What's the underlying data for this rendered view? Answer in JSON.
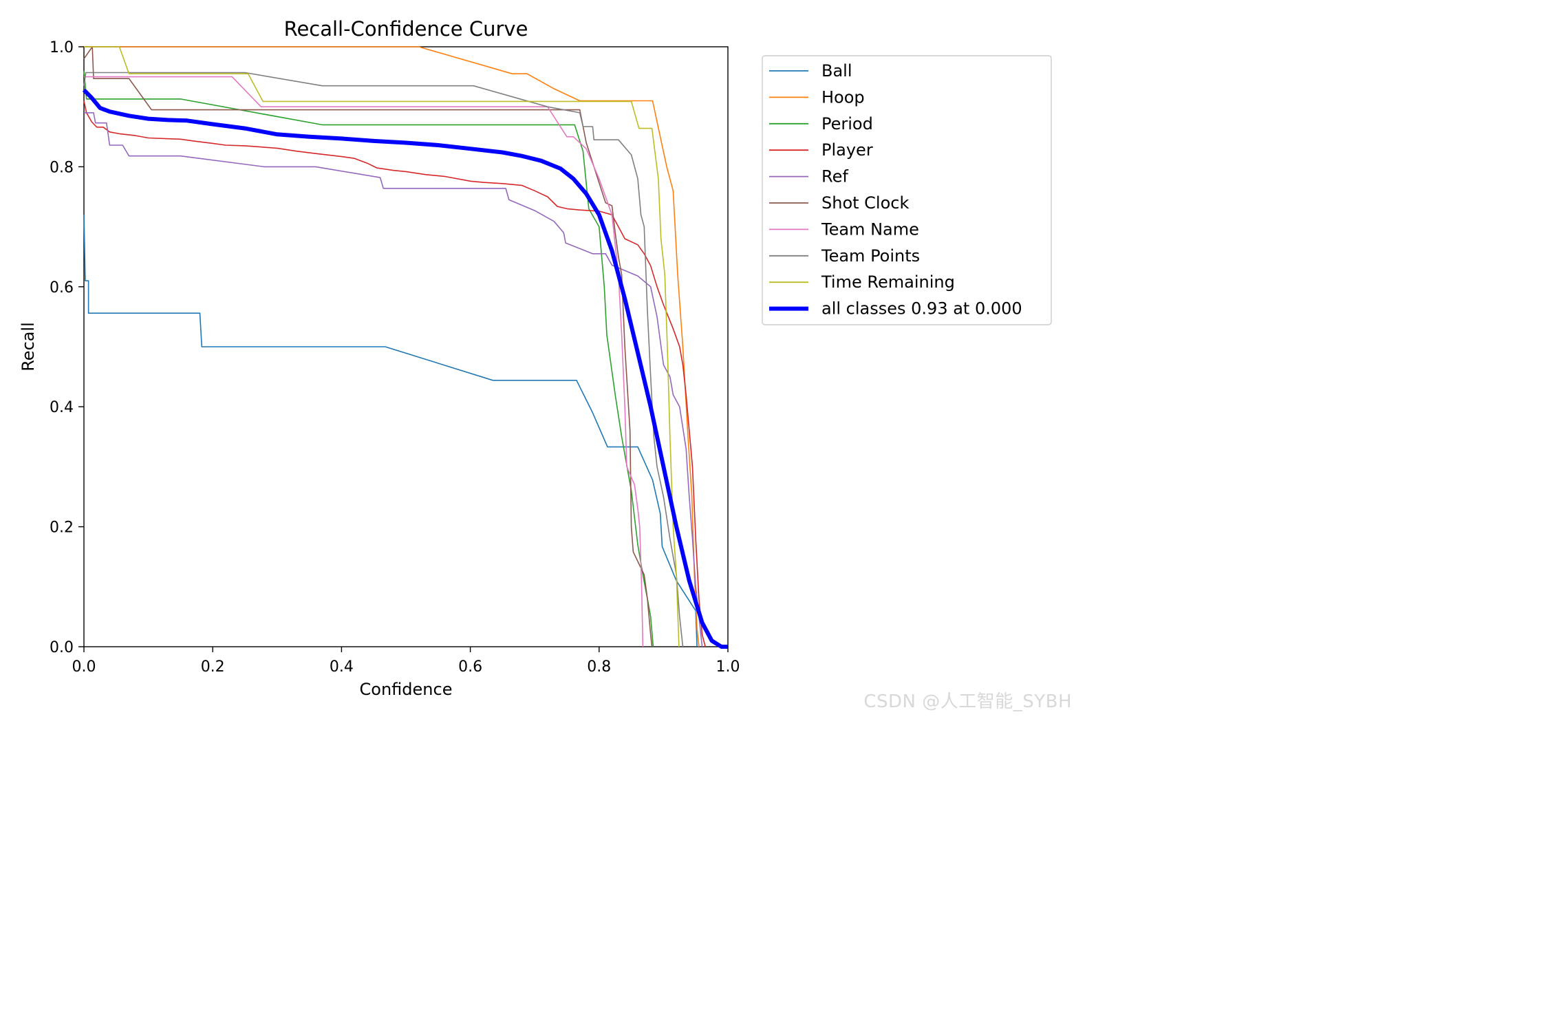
{
  "watermark": "CSDN @人工智能_SYBH",
  "chart_data": {
    "type": "line",
    "title": "Recall-Confidence Curve",
    "xlabel": "Confidence",
    "ylabel": "Recall",
    "xlim": [
      0,
      1
    ],
    "ylim": [
      0,
      1
    ],
    "xticks": [
      "0.0",
      "0.2",
      "0.4",
      "0.6",
      "0.8",
      "1.0"
    ],
    "yticks": [
      "0.0",
      "0.2",
      "0.4",
      "0.6",
      "0.8",
      "1.0"
    ],
    "grid": false,
    "legend_position": "outside-upper-right",
    "series": [
      {
        "name": "Ball",
        "color": "#1f77b4",
        "width": 1.6,
        "points": [
          [
            0,
            0.72
          ],
          [
            0.002,
            0.61
          ],
          [
            0.007,
            0.61
          ],
          [
            0.007,
            0.556
          ],
          [
            0.18,
            0.556
          ],
          [
            0.183,
            0.5
          ],
          [
            0.468,
            0.5
          ],
          [
            0.635,
            0.444
          ],
          [
            0.765,
            0.444
          ],
          [
            0.79,
            0.39
          ],
          [
            0.813,
            0.333
          ],
          [
            0.86,
            0.333
          ],
          [
            0.883,
            0.278
          ],
          [
            0.895,
            0.222
          ],
          [
            0.898,
            0.167
          ],
          [
            0.92,
            0.11
          ],
          [
            0.95,
            0.06
          ],
          [
            0.952,
            0
          ]
        ]
      },
      {
        "name": "Hoop",
        "color": "#ff7f0e",
        "width": 1.6,
        "points": [
          [
            0,
            1
          ],
          [
            0.52,
            1
          ],
          [
            0.665,
            0.955
          ],
          [
            0.688,
            0.955
          ],
          [
            0.73,
            0.93
          ],
          [
            0.77,
            0.91
          ],
          [
            0.883,
            0.91
          ],
          [
            0.893,
            0.86
          ],
          [
            0.905,
            0.8
          ],
          [
            0.915,
            0.76
          ],
          [
            0.922,
            0.62
          ],
          [
            0.93,
            0.5
          ],
          [
            0.938,
            0.35
          ],
          [
            0.944,
            0.25
          ],
          [
            0.948,
            0.12
          ],
          [
            0.952,
            0.03
          ],
          [
            0.955,
            0
          ]
        ]
      },
      {
        "name": "Period",
        "color": "#2ca02c",
        "width": 1.6,
        "points": [
          [
            0,
            0.96
          ],
          [
            0.004,
            0.913
          ],
          [
            0.15,
            0.913
          ],
          [
            0.37,
            0.87
          ],
          [
            0.762,
            0.87
          ],
          [
            0.775,
            0.826
          ],
          [
            0.784,
            0.73
          ],
          [
            0.8,
            0.7
          ],
          [
            0.808,
            0.6
          ],
          [
            0.812,
            0.52
          ],
          [
            0.825,
            0.42
          ],
          [
            0.835,
            0.35
          ],
          [
            0.85,
            0.26
          ],
          [
            0.86,
            0.17
          ],
          [
            0.868,
            0.12
          ],
          [
            0.875,
            0.08
          ],
          [
            0.88,
            0.05
          ],
          [
            0.884,
            0
          ]
        ]
      },
      {
        "name": "Player",
        "color": "#d62728",
        "width": 1.6,
        "points": [
          [
            0,
            0.91
          ],
          [
            0.004,
            0.89
          ],
          [
            0.012,
            0.875
          ],
          [
            0.02,
            0.866
          ],
          [
            0.03,
            0.866
          ],
          [
            0.04,
            0.858
          ],
          [
            0.055,
            0.855
          ],
          [
            0.08,
            0.852
          ],
          [
            0.1,
            0.848
          ],
          [
            0.15,
            0.846
          ],
          [
            0.17,
            0.843
          ],
          [
            0.2,
            0.839
          ],
          [
            0.22,
            0.836
          ],
          [
            0.25,
            0.835
          ],
          [
            0.3,
            0.831
          ],
          [
            0.33,
            0.826
          ],
          [
            0.36,
            0.822
          ],
          [
            0.4,
            0.817
          ],
          [
            0.42,
            0.814
          ],
          [
            0.44,
            0.806
          ],
          [
            0.455,
            0.798
          ],
          [
            0.48,
            0.794
          ],
          [
            0.5,
            0.792
          ],
          [
            0.53,
            0.787
          ],
          [
            0.56,
            0.784
          ],
          [
            0.6,
            0.776
          ],
          [
            0.62,
            0.774
          ],
          [
            0.65,
            0.772
          ],
          [
            0.68,
            0.769
          ],
          [
            0.7,
            0.76
          ],
          [
            0.72,
            0.75
          ],
          [
            0.735,
            0.734
          ],
          [
            0.75,
            0.73
          ],
          [
            0.77,
            0.728
          ],
          [
            0.8,
            0.726
          ],
          [
            0.82,
            0.72
          ],
          [
            0.83,
            0.7
          ],
          [
            0.84,
            0.68
          ],
          [
            0.86,
            0.67
          ],
          [
            0.87,
            0.655
          ],
          [
            0.88,
            0.635
          ],
          [
            0.89,
            0.6
          ],
          [
            0.9,
            0.57
          ],
          [
            0.915,
            0.53
          ],
          [
            0.925,
            0.5
          ],
          [
            0.93,
            0.47
          ],
          [
            0.935,
            0.42
          ],
          [
            0.945,
            0.3
          ],
          [
            0.95,
            0.18
          ],
          [
            0.955,
            0.08
          ],
          [
            0.96,
            0.02
          ],
          [
            0.965,
            0
          ]
        ]
      },
      {
        "name": "Ref",
        "color": "#9467bd",
        "width": 1.6,
        "points": [
          [
            0,
            0.89
          ],
          [
            0.015,
            0.89
          ],
          [
            0.018,
            0.873
          ],
          [
            0.035,
            0.873
          ],
          [
            0.04,
            0.836
          ],
          [
            0.06,
            0.836
          ],
          [
            0.07,
            0.818
          ],
          [
            0.15,
            0.818
          ],
          [
            0.28,
            0.8
          ],
          [
            0.36,
            0.8
          ],
          [
            0.46,
            0.782
          ],
          [
            0.465,
            0.764
          ],
          [
            0.655,
            0.764
          ],
          [
            0.66,
            0.745
          ],
          [
            0.7,
            0.727
          ],
          [
            0.73,
            0.709
          ],
          [
            0.745,
            0.69
          ],
          [
            0.748,
            0.673
          ],
          [
            0.79,
            0.655
          ],
          [
            0.81,
            0.655
          ],
          [
            0.82,
            0.636
          ],
          [
            0.86,
            0.618
          ],
          [
            0.88,
            0.6
          ],
          [
            0.89,
            0.55
          ],
          [
            0.9,
            0.47
          ],
          [
            0.91,
            0.45
          ],
          [
            0.915,
            0.42
          ],
          [
            0.925,
            0.4
          ],
          [
            0.935,
            0.33
          ],
          [
            0.94,
            0.25
          ],
          [
            0.945,
            0.18
          ],
          [
            0.95,
            0.1
          ],
          [
            0.955,
            0.05
          ],
          [
            0.96,
            0
          ]
        ]
      },
      {
        "name": "Shot Clock",
        "color": "#8c564b",
        "width": 1.6,
        "points": [
          [
            0,
            0.98
          ],
          [
            0.013,
            1
          ],
          [
            0.015,
            0.947
          ],
          [
            0.07,
            0.947
          ],
          [
            0.105,
            0.895
          ],
          [
            0.73,
            0.895
          ],
          [
            0.77,
            0.895
          ],
          [
            0.78,
            0.84
          ],
          [
            0.795,
            0.79
          ],
          [
            0.81,
            0.74
          ],
          [
            0.82,
            0.735
          ],
          [
            0.825,
            0.69
          ],
          [
            0.83,
            0.65
          ],
          [
            0.835,
            0.62
          ],
          [
            0.84,
            0.5
          ],
          [
            0.848,
            0.36
          ],
          [
            0.85,
            0.2
          ],
          [
            0.853,
            0.158
          ],
          [
            0.87,
            0.12
          ],
          [
            0.875,
            0.08
          ],
          [
            0.88,
            0.02
          ],
          [
            0.882,
            0
          ]
        ]
      },
      {
        "name": "Team Name",
        "color": "#e377c2",
        "width": 1.6,
        "points": [
          [
            0,
            0.95
          ],
          [
            0.23,
            0.95
          ],
          [
            0.275,
            0.9
          ],
          [
            0.72,
            0.9
          ],
          [
            0.75,
            0.85
          ],
          [
            0.76,
            0.85
          ],
          [
            0.78,
            0.83
          ],
          [
            0.8,
            0.78
          ],
          [
            0.82,
            0.72
          ],
          [
            0.83,
            0.62
          ],
          [
            0.835,
            0.52
          ],
          [
            0.84,
            0.4
          ],
          [
            0.843,
            0.3
          ],
          [
            0.855,
            0.27
          ],
          [
            0.86,
            0.23
          ],
          [
            0.863,
            0.2
          ],
          [
            0.866,
            0.1
          ],
          [
            0.868,
            0
          ]
        ]
      },
      {
        "name": "Team Points",
        "color": "#7f7f7f",
        "width": 1.6,
        "points": [
          [
            0,
            0.935
          ],
          [
            0.003,
            0.957
          ],
          [
            0.25,
            0.957
          ],
          [
            0.37,
            0.935
          ],
          [
            0.605,
            0.935
          ],
          [
            0.72,
            0.9
          ],
          [
            0.77,
            0.89
          ],
          [
            0.775,
            0.867
          ],
          [
            0.79,
            0.867
          ],
          [
            0.792,
            0.845
          ],
          [
            0.83,
            0.845
          ],
          [
            0.85,
            0.82
          ],
          [
            0.86,
            0.78
          ],
          [
            0.865,
            0.72
          ],
          [
            0.87,
            0.7
          ],
          [
            0.875,
            0.56
          ],
          [
            0.88,
            0.45
          ],
          [
            0.885,
            0.35
          ],
          [
            0.89,
            0.3
          ],
          [
            0.9,
            0.25
          ],
          [
            0.91,
            0.18
          ],
          [
            0.92,
            0.12
          ],
          [
            0.925,
            0.05
          ],
          [
            0.93,
            0
          ]
        ]
      },
      {
        "name": "Time Remaining",
        "color": "#bcbd22",
        "width": 1.6,
        "points": [
          [
            0,
            1
          ],
          [
            0.055,
            1
          ],
          [
            0.07,
            0.955
          ],
          [
            0.255,
            0.955
          ],
          [
            0.278,
            0.909
          ],
          [
            0.85,
            0.909
          ],
          [
            0.862,
            0.864
          ],
          [
            0.882,
            0.864
          ],
          [
            0.892,
            0.78
          ],
          [
            0.896,
            0.68
          ],
          [
            0.902,
            0.62
          ],
          [
            0.906,
            0.5
          ],
          [
            0.91,
            0.35
          ],
          [
            0.915,
            0.2
          ],
          [
            0.92,
            0.12
          ],
          [
            0.924,
            0
          ]
        ]
      },
      {
        "name": "all classes 0.93 at 0.000",
        "color": "#0000ff",
        "width": 6,
        "points": [
          [
            0,
            0.928
          ],
          [
            0.012,
            0.915
          ],
          [
            0.025,
            0.898
          ],
          [
            0.04,
            0.892
          ],
          [
            0.07,
            0.885
          ],
          [
            0.1,
            0.88
          ],
          [
            0.13,
            0.878
          ],
          [
            0.16,
            0.877
          ],
          [
            0.2,
            0.871
          ],
          [
            0.25,
            0.864
          ],
          [
            0.3,
            0.854
          ],
          [
            0.35,
            0.85
          ],
          [
            0.4,
            0.847
          ],
          [
            0.45,
            0.843
          ],
          [
            0.5,
            0.84
          ],
          [
            0.55,
            0.836
          ],
          [
            0.6,
            0.83
          ],
          [
            0.65,
            0.824
          ],
          [
            0.68,
            0.818
          ],
          [
            0.71,
            0.81
          ],
          [
            0.74,
            0.797
          ],
          [
            0.76,
            0.78
          ],
          [
            0.78,
            0.755
          ],
          [
            0.8,
            0.72
          ],
          [
            0.82,
            0.66
          ],
          [
            0.84,
            0.58
          ],
          [
            0.86,
            0.49
          ],
          [
            0.88,
            0.4
          ],
          [
            0.9,
            0.3
          ],
          [
            0.92,
            0.2
          ],
          [
            0.94,
            0.11
          ],
          [
            0.96,
            0.04
          ],
          [
            0.975,
            0.01
          ],
          [
            0.99,
            0
          ],
          [
            1,
            0
          ]
        ]
      }
    ]
  }
}
